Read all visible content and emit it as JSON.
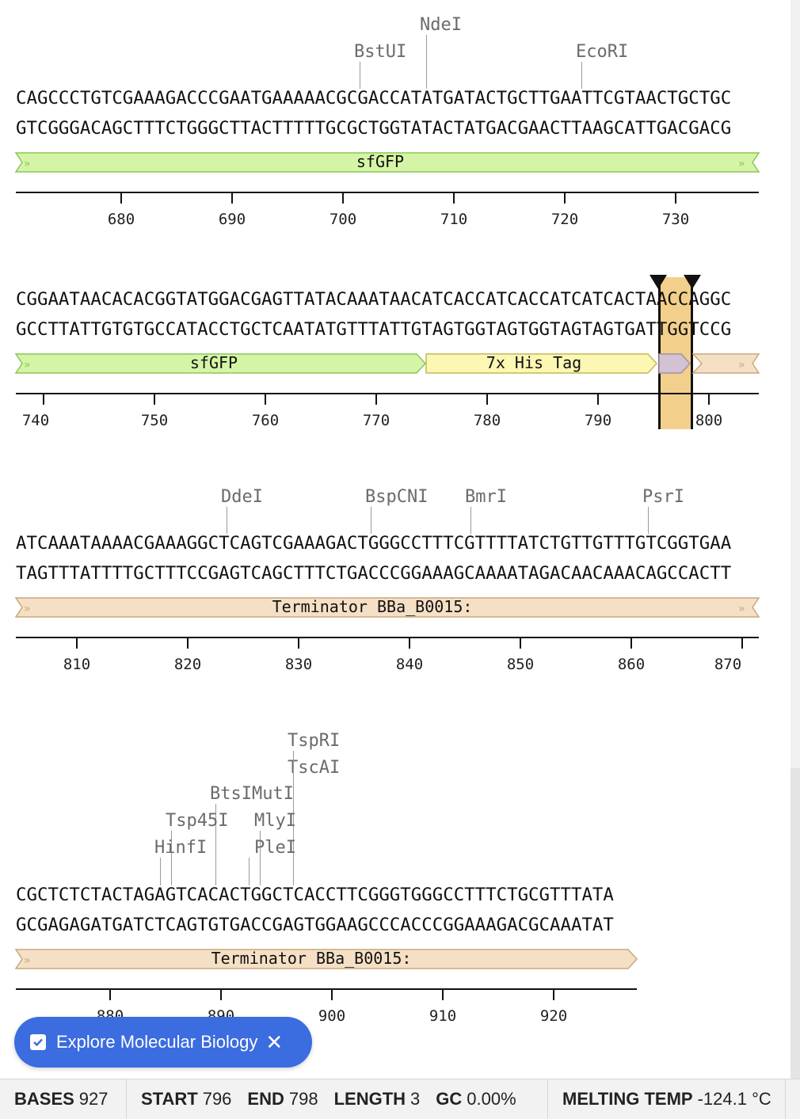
{
  "rows": [
    {
      "top": "CAGCCCTGTCGAAAGACCCGAATGAAAAACGCGACCATATGATACTGCTTGAATTCGTAACTGCTGC",
      "bottom": "GTCGGGACAGCTTTCTGGGCTTACTTTTTGCGCTGGTATACTATGACGAACTTAAGCATTGACGACG",
      "enzymes": [
        "NdeI",
        "BstUI",
        "EcoRI"
      ],
      "features": [
        "sfGFP"
      ],
      "ticks": [
        "680",
        "690",
        "700",
        "710",
        "720",
        "730"
      ]
    },
    {
      "top": "CGGAATAACACACGGTATGGACGAGTTATACAAATAACATCACCATCACCATCATCACTAACCAGGC",
      "bottom": "GCCTTATTGTGTGCCATACCTGCTCAATATGTTTATTGTAGTGGTAGTGGTAGTAGTGATTGGTCCG",
      "features": [
        "sfGFP",
        "7x His Tag"
      ],
      "ticks": [
        "740",
        "750",
        "760",
        "770",
        "780",
        "790",
        "800"
      ]
    },
    {
      "top": "ATCAAATAAAACGAAAGGCTCAGTCGAAAGACTGGGCCTTTCGTTTTATCTGTTGTTTGTCGGTGAA",
      "bottom": "TAGTTTATTTTGCTTTCCGAGTCAGCTTTCTGACCCGGAAAGCAAAATAGACAACAAACAGCCACTT",
      "enzymes": [
        "DdeI",
        "BspCNI",
        "BmrI",
        "PsrI"
      ],
      "features": [
        "Terminator BBa_B0015:"
      ],
      "ticks": [
        "810",
        "820",
        "830",
        "840",
        "850",
        "860",
        "870"
      ]
    },
    {
      "top": "CGCTCTCTACTAGAGTCACACTGGCTCACCTTCGGGTGGGCCTTTCTGCGTTTATA",
      "bottom": "GCGAGAGATGATCTCAGTGTGACCGAGTGGAAGCCCACCCGGAAAGACGCAAATAT",
      "enzymes": [
        "TspRI",
        "TscAI",
        "BtsIMutI",
        "Tsp45I",
        "MlyI",
        "HinfI",
        "PleI"
      ],
      "features": [
        "Terminator BBa_B0015:"
      ],
      "ticks": [
        "880",
        "890",
        "900",
        "910",
        "920"
      ]
    }
  ],
  "colors": {
    "sfgfp": "#d5f5a6",
    "sfgfp_border": "#8cc55a",
    "his": "#fdf7b4",
    "his_border": "#c4b957",
    "term": "#f5e0c6",
    "term_border": "#c9a77c",
    "small": "#d3c2d3",
    "selection": "#f2cf8a",
    "toast": "#3b6ce0"
  },
  "toast": {
    "label": "Explore Molecular Biology",
    "check_icon": "checkbox-icon",
    "close_icon": "close-icon"
  },
  "status": {
    "bases_label": "BASES",
    "bases_value": "927",
    "start_label": "START",
    "start_value": "796",
    "end_label": "END",
    "end_value": "798",
    "length_label": "LENGTH",
    "length_value": "3",
    "gc_label": "GC",
    "gc_value": "0.00%",
    "tm_label": "MELTING TEMP",
    "tm_value": "-124.1 °C"
  }
}
